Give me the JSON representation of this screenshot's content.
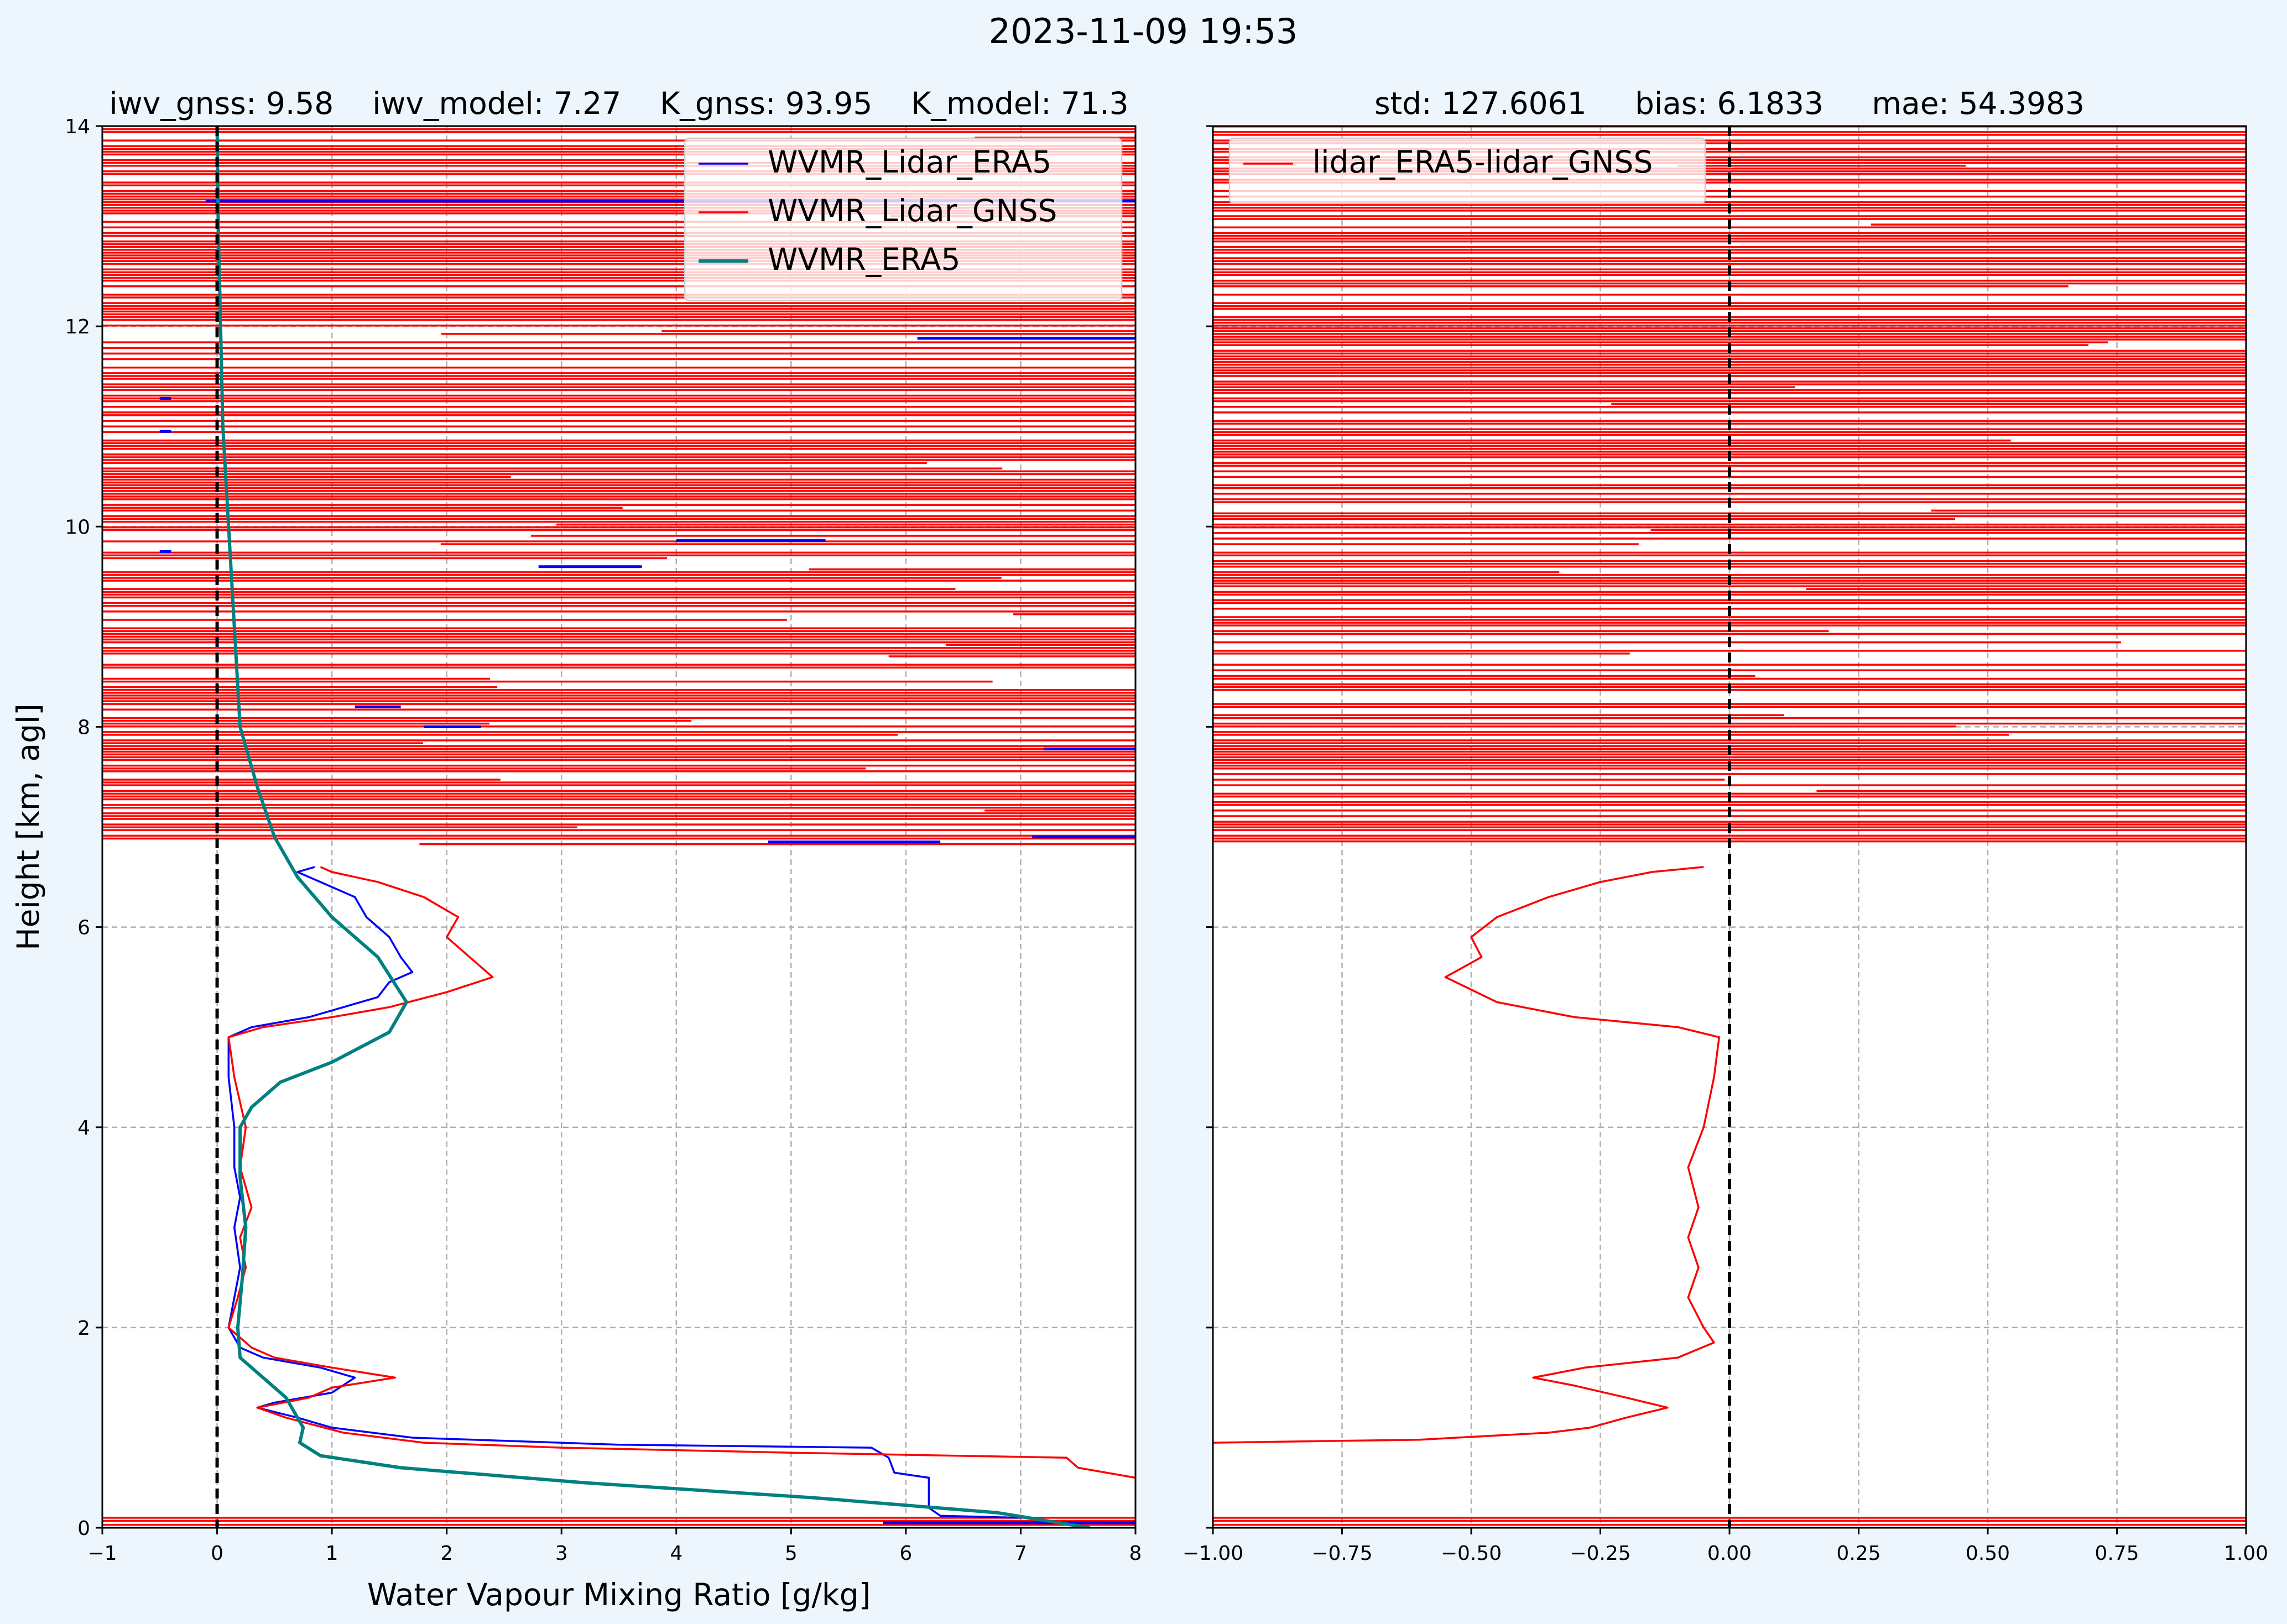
{
  "suptitle": "2023-11-09 19:53",
  "chart_data": [
    {
      "type": "line",
      "title": "iwv_gnss: 9.58    iwv_model: 7.27    K_gnss: 93.95    K_model: 71.3",
      "xlabel": "Water Vapour Mixing Ratio [g/kg]",
      "ylabel": "Height [km, agl]",
      "xlim": [
        -1,
        8
      ],
      "ylim": [
        0,
        14
      ],
      "xticks": [
        "-1",
        "0",
        "1",
        "2",
        "3",
        "4",
        "5",
        "6",
        "7",
        "8"
      ],
      "yticks": [
        "0",
        "2",
        "4",
        "6",
        "8",
        "10",
        "12",
        "14"
      ],
      "grid": true,
      "legend_position": "upper-right",
      "zero_line": 0,
      "series": [
        {
          "name": "WVMR_Lidar_ERA5",
          "color": "#0000ff",
          "points": [
            [
              7.0,
              0.1
            ],
            [
              6.3,
              0.12
            ],
            [
              6.2,
              0.2
            ],
            [
              6.2,
              0.5
            ],
            [
              5.9,
              0.55
            ],
            [
              5.85,
              0.7
            ],
            [
              5.7,
              0.8
            ],
            [
              3.5,
              0.83
            ],
            [
              1.7,
              0.9
            ],
            [
              1.0,
              1.0
            ],
            [
              0.7,
              1.1
            ],
            [
              0.35,
              1.2
            ],
            [
              0.5,
              1.25
            ],
            [
              1.0,
              1.35
            ],
            [
              1.2,
              1.5
            ],
            [
              0.9,
              1.6
            ],
            [
              0.4,
              1.7
            ],
            [
              0.2,
              1.8
            ],
            [
              0.1,
              2.0
            ],
            [
              0.15,
              2.3
            ],
            [
              0.2,
              2.6
            ],
            [
              0.15,
              3.0
            ],
            [
              0.2,
              3.3
            ],
            [
              0.15,
              3.6
            ],
            [
              0.15,
              4.0
            ],
            [
              0.1,
              4.5
            ],
            [
              0.1,
              4.9
            ],
            [
              0.3,
              5.0
            ],
            [
              0.8,
              5.1
            ],
            [
              1.1,
              5.2
            ],
            [
              1.4,
              5.3
            ],
            [
              1.5,
              5.45
            ],
            [
              1.7,
              5.55
            ],
            [
              1.6,
              5.7
            ],
            [
              1.5,
              5.9
            ],
            [
              1.3,
              6.1
            ],
            [
              1.2,
              6.3
            ],
            [
              0.9,
              6.45
            ],
            [
              0.7,
              6.55
            ],
            [
              0.85,
              6.6
            ]
          ]
        },
        {
          "name": "WVMR_Lidar_GNSS",
          "color": "#ff0000",
          "points": [
            [
              8.0,
              0.5
            ],
            [
              7.5,
              0.6
            ],
            [
              7.4,
              0.7
            ],
            [
              5.0,
              0.75
            ],
            [
              3.0,
              0.8
            ],
            [
              1.8,
              0.85
            ],
            [
              1.1,
              0.95
            ],
            [
              0.6,
              1.1
            ],
            [
              0.35,
              1.2
            ],
            [
              0.8,
              1.3
            ],
            [
              1.0,
              1.4
            ],
            [
              1.55,
              1.5
            ],
            [
              1.0,
              1.6
            ],
            [
              0.5,
              1.7
            ],
            [
              0.3,
              1.8
            ],
            [
              0.1,
              2.0
            ],
            [
              0.18,
              2.3
            ],
            [
              0.25,
              2.6
            ],
            [
              0.2,
              2.9
            ],
            [
              0.3,
              3.2
            ],
            [
              0.2,
              3.6
            ],
            [
              0.25,
              4.0
            ],
            [
              0.15,
              4.5
            ],
            [
              0.1,
              4.9
            ],
            [
              0.4,
              5.0
            ],
            [
              1.0,
              5.1
            ],
            [
              1.5,
              5.2
            ],
            [
              2.0,
              5.35
            ],
            [
              2.4,
              5.5
            ],
            [
              2.2,
              5.7
            ],
            [
              2.0,
              5.9
            ],
            [
              2.1,
              6.1
            ],
            [
              1.8,
              6.3
            ],
            [
              1.4,
              6.45
            ],
            [
              1.0,
              6.55
            ],
            [
              0.9,
              6.6
            ]
          ]
        },
        {
          "name": "WVMR_ERA5",
          "color": "#008080",
          "points": [
            [
              7.6,
              0.0
            ],
            [
              6.8,
              0.15
            ],
            [
              5.2,
              0.3
            ],
            [
              3.2,
              0.45
            ],
            [
              1.6,
              0.6
            ],
            [
              0.9,
              0.72
            ],
            [
              0.72,
              0.85
            ],
            [
              0.75,
              1.0
            ],
            [
              0.6,
              1.3
            ],
            [
              0.4,
              1.5
            ],
            [
              0.2,
              1.7
            ],
            [
              0.18,
              2.0
            ],
            [
              0.22,
              2.5
            ],
            [
              0.25,
              3.0
            ],
            [
              0.2,
              3.5
            ],
            [
              0.2,
              4.0
            ],
            [
              0.3,
              4.2
            ],
            [
              0.55,
              4.45
            ],
            [
              1.0,
              4.65
            ],
            [
              1.5,
              4.95
            ],
            [
              1.65,
              5.25
            ],
            [
              1.4,
              5.7
            ],
            [
              1.0,
              6.1
            ],
            [
              0.7,
              6.5
            ],
            [
              0.5,
              6.9
            ],
            [
              0.35,
              7.4
            ],
            [
              0.2,
              8.0
            ],
            [
              0.15,
              9.0
            ],
            [
              0.1,
              10.0
            ],
            [
              0.05,
              11.0
            ],
            [
              0.03,
              12.0
            ],
            [
              0.01,
              13.0
            ],
            [
              0.0,
              14.0
            ]
          ]
        }
      ],
      "noise_segments": [
        {
          "color": "#0000ff",
          "segments": [
            [
              5.8,
              8.0,
              0.05
            ],
            [
              4.8,
              6.3,
              6.85
            ],
            [
              7.1,
              8.0,
              6.9
            ],
            [
              7.2,
              8.0,
              7.78
            ],
            [
              1.2,
              1.6,
              8.2
            ],
            [
              1.8,
              2.3,
              8.0
            ],
            [
              4.0,
              5.3,
              9.86
            ],
            [
              2.8,
              3.7,
              9.6
            ],
            [
              -0.5,
              -0.4,
              9.75
            ],
            [
              -0.5,
              -0.4,
              10.95
            ],
            [
              -0.5,
              -0.4,
              11.28
            ],
            [
              6.1,
              8.0,
              11.88
            ],
            [
              -0.1,
              8.0,
              13.25
            ]
          ]
        }
      ]
    },
    {
      "type": "line",
      "title": "std: 127.6061     bias: 6.1833     mae: 54.3983",
      "xlabel": "",
      "ylabel": "",
      "xlim": [
        -1.0,
        1.0
      ],
      "ylim": [
        0,
        14
      ],
      "xticks": [
        "-1.00",
        "-0.75",
        "-0.50",
        "-0.25",
        "0.00",
        "0.25",
        "0.50",
        "0.75",
        "1.00"
      ],
      "yticks": [],
      "grid": true,
      "legend_position": "upper-left",
      "zero_line": 0,
      "series": [
        {
          "name": "lidar_ERA5-lidar_GNSS",
          "color": "#ff0000",
          "points": [
            [
              -1.0,
              0.85
            ],
            [
              -0.6,
              0.88
            ],
            [
              -0.35,
              0.95
            ],
            [
              -0.27,
              1.0
            ],
            [
              -0.2,
              1.1
            ],
            [
              -0.12,
              1.2
            ],
            [
              -0.2,
              1.3
            ],
            [
              -0.3,
              1.42
            ],
            [
              -0.38,
              1.5
            ],
            [
              -0.28,
              1.6
            ],
            [
              -0.1,
              1.7
            ],
            [
              -0.03,
              1.85
            ],
            [
              -0.05,
              2.0
            ],
            [
              -0.08,
              2.3
            ],
            [
              -0.06,
              2.6
            ],
            [
              -0.08,
              2.9
            ],
            [
              -0.06,
              3.2
            ],
            [
              -0.08,
              3.6
            ],
            [
              -0.05,
              4.0
            ],
            [
              -0.03,
              4.5
            ],
            [
              -0.02,
              4.9
            ],
            [
              -0.1,
              5.0
            ],
            [
              -0.3,
              5.1
            ],
            [
              -0.45,
              5.25
            ],
            [
              -0.55,
              5.5
            ],
            [
              -0.48,
              5.7
            ],
            [
              -0.5,
              5.9
            ],
            [
              -0.45,
              6.1
            ],
            [
              -0.35,
              6.3
            ],
            [
              -0.25,
              6.45
            ],
            [
              -0.15,
              6.55
            ],
            [
              -0.05,
              6.6
            ]
          ]
        }
      ]
    }
  ]
}
